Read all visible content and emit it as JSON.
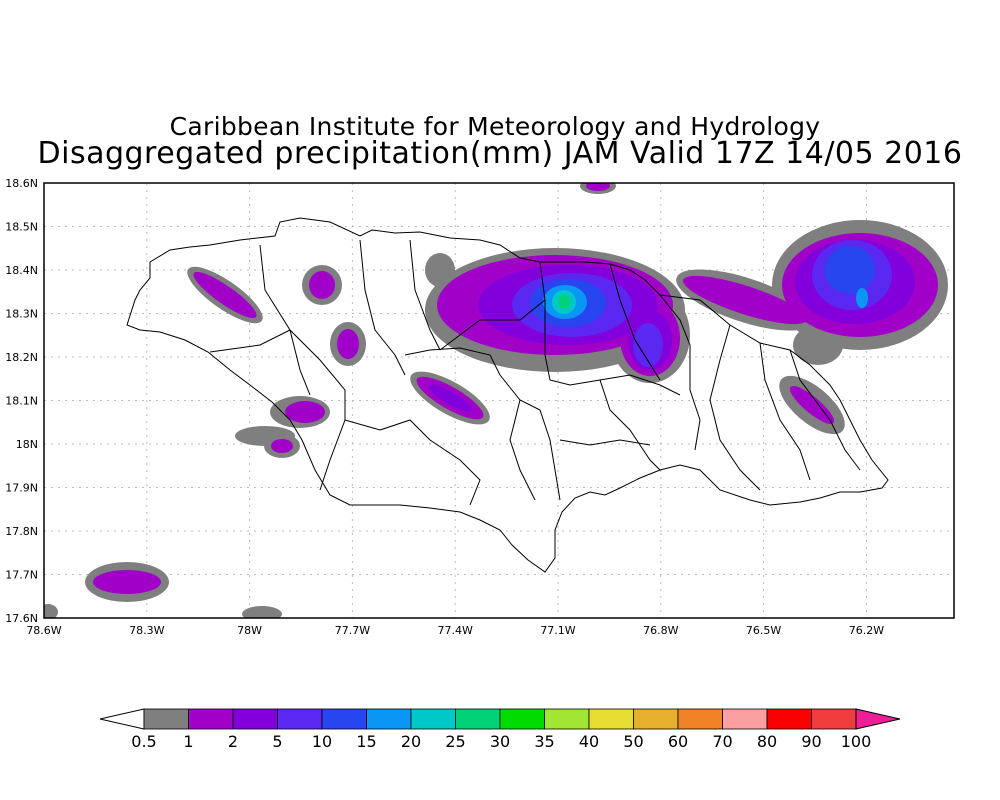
{
  "title": {
    "line1": "Caribbean Institute for Meteorology and Hydrology",
    "line2": "Disaggregated precipitation(mm) JAM Valid 17Z 14/05 2016"
  },
  "axes": {
    "lat_ticks": [
      "18.6N",
      "18.5N",
      "18.4N",
      "18.3N",
      "18.2N",
      "18.1N",
      "18N",
      "17.9N",
      "17.8N",
      "17.7N",
      "17.6N"
    ],
    "lon_ticks": [
      "78.6W",
      "78.3W",
      "78W",
      "77.7W",
      "77.4W",
      "77.1W",
      "76.8W",
      "76.5W",
      "76.2W"
    ]
  },
  "colorbar": {
    "colors": [
      "#7f7f7f",
      "#a000c8",
      "#8200dc",
      "#5a28f0",
      "#2846f0",
      "#0a96f5",
      "#00c8c8",
      "#00d278",
      "#00dc00",
      "#a0e632",
      "#e6dc32",
      "#e6af2d",
      "#f08228",
      "#faa0a0",
      "#fa0000",
      "#f03c3c",
      "#f01e96"
    ],
    "labels": [
      "0.5",
      "1",
      "2",
      "5",
      "10",
      "15",
      "20",
      "25",
      "30",
      "35",
      "40",
      "50",
      "60",
      "70",
      "80",
      "90",
      "100"
    ]
  }
}
